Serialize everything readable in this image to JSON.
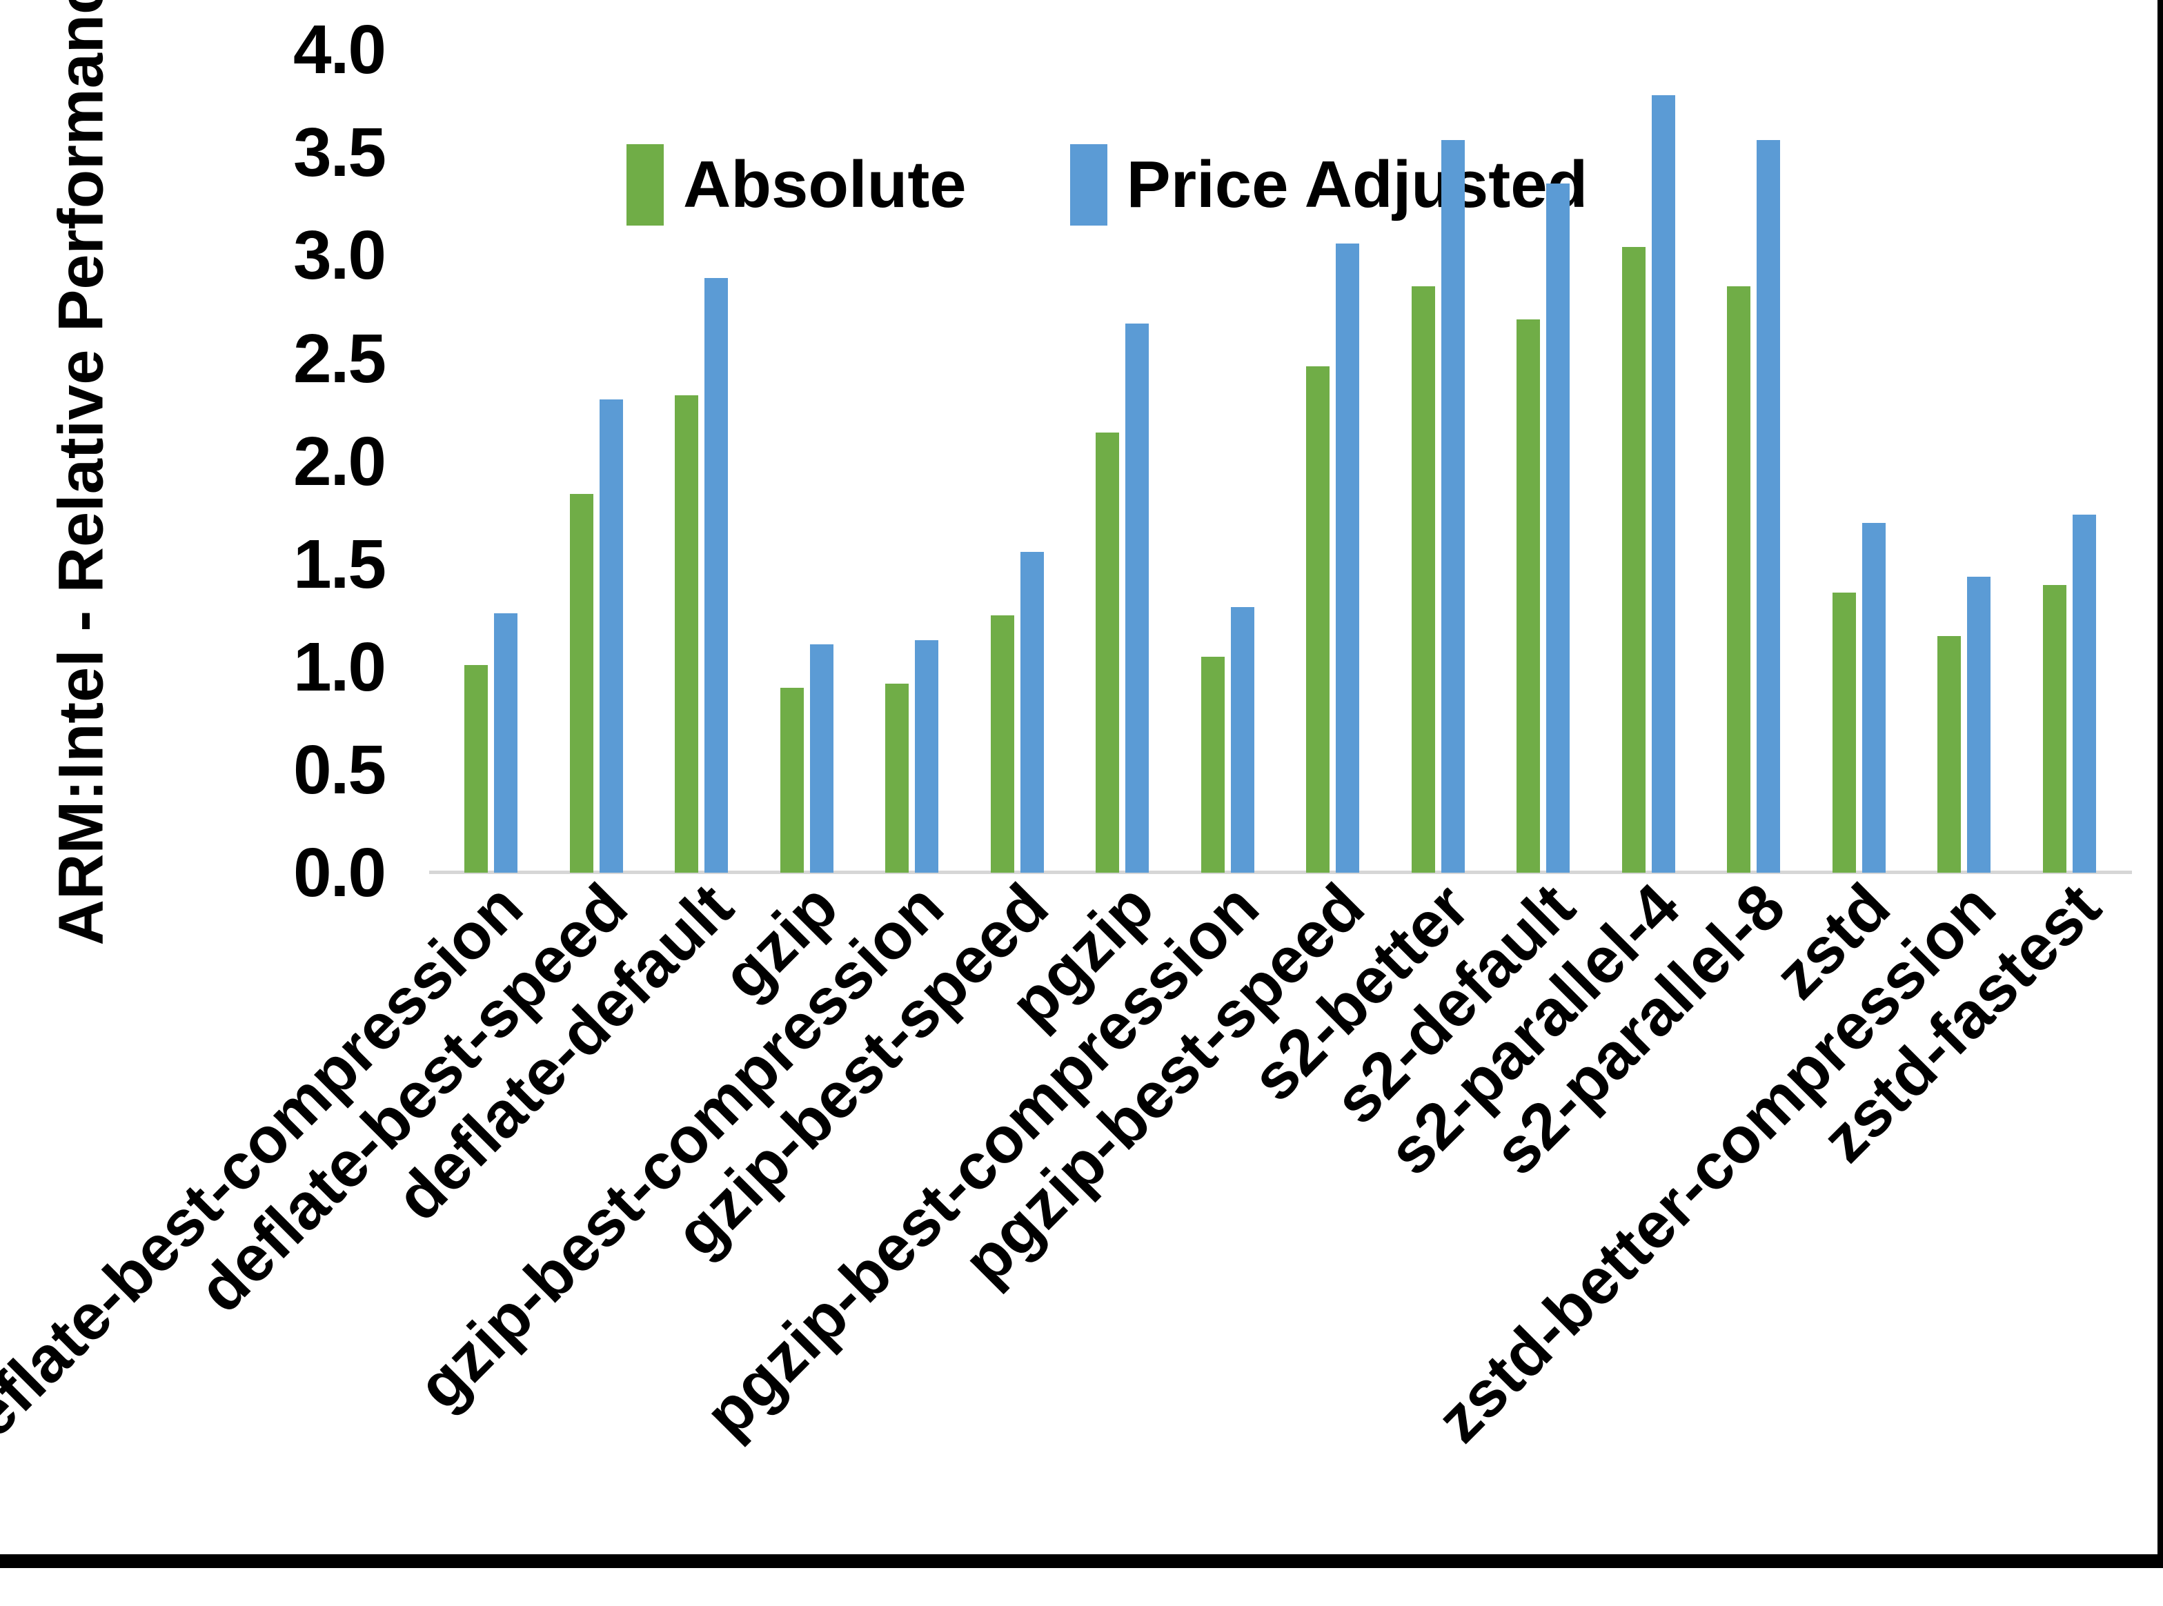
{
  "page": {
    "background_color": "#ffffff",
    "edge_bar_color": "#000000"
  },
  "chart_data": {
    "type": "bar",
    "title": "",
    "xlabel": "",
    "ylabel": "ARM:Intel - Relative Performance",
    "ylim": [
      0.0,
      4.0
    ],
    "ytick_step": 0.5,
    "ytick_labels": [
      "0.0",
      "0.5",
      "1.0",
      "1.5",
      "2.0",
      "2.5",
      "3.0",
      "3.5",
      "4.0"
    ],
    "grid": false,
    "legend_position": "top-center",
    "categories": [
      "deflate-best-compression",
      "deflate-best-speed",
      "deflate-default",
      "gzip",
      "gzip-best-compression",
      "gzip-best-speed",
      "pgzip",
      "pgzip-best-compression",
      "pgzip-best-speed",
      "s2-better",
      "s2-default",
      "s2-parallel-4",
      "s2-parallel-8",
      "zstd",
      "zstd-better-compression",
      "zstd-fastest"
    ],
    "series": [
      {
        "name": "Absolute",
        "color": "#70AD47",
        "values": [
          1.01,
          1.84,
          2.32,
          0.9,
          0.92,
          1.25,
          2.14,
          1.05,
          2.46,
          2.85,
          2.69,
          3.04,
          2.85,
          1.36,
          1.15,
          1.4
        ]
      },
      {
        "name": "Price Adjusted",
        "color": "#5B9BD5",
        "values": [
          1.26,
          2.3,
          2.89,
          1.11,
          1.13,
          1.56,
          2.67,
          1.29,
          3.06,
          3.56,
          3.35,
          3.78,
          3.56,
          1.7,
          1.44,
          1.74
        ]
      }
    ]
  }
}
